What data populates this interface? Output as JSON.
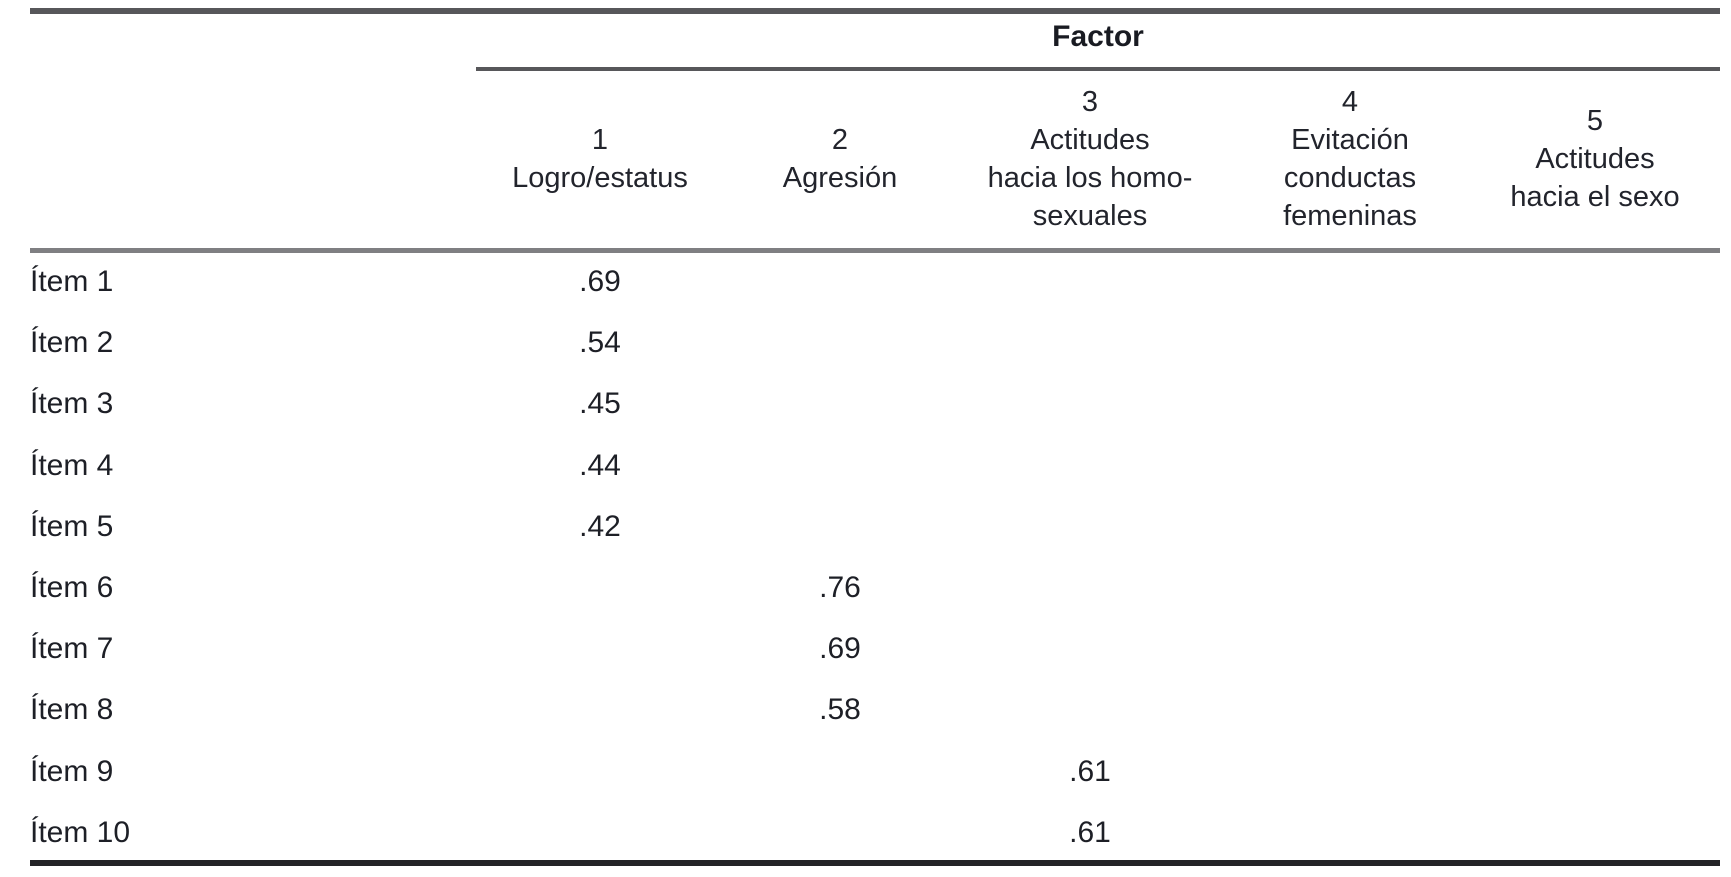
{
  "table": {
    "spanner_label": "Factor",
    "columns": [
      {
        "number": "1",
        "lines": [
          "Logro/estatus"
        ]
      },
      {
        "number": "2",
        "lines": [
          "Agresión"
        ]
      },
      {
        "number": "3",
        "lines": [
          "Actitudes",
          "hacia los homo-",
          "sexuales"
        ]
      },
      {
        "number": "4",
        "lines": [
          "Evitación",
          "conductas",
          "femeninas"
        ]
      },
      {
        "number": "5",
        "lines": [
          "Actitudes",
          "hacia el sexo"
        ]
      }
    ],
    "rows": [
      {
        "label": "Ítem 1",
        "values": [
          ".69",
          "",
          "",
          "",
          ""
        ]
      },
      {
        "label": "Ítem 2",
        "values": [
          ".54",
          "",
          "",
          "",
          ""
        ]
      },
      {
        "label": "Ítem 3",
        "values": [
          ".45",
          "",
          "",
          "",
          ""
        ]
      },
      {
        "label": "Ítem 4",
        "values": [
          ".44",
          "",
          "",
          "",
          ""
        ]
      },
      {
        "label": "Ítem 5",
        "values": [
          ".42",
          "",
          "",
          "",
          ""
        ]
      },
      {
        "label": "Ítem 6",
        "values": [
          "",
          ".76",
          "",
          "",
          ""
        ]
      },
      {
        "label": "Ítem 7",
        "values": [
          "",
          ".69",
          "",
          "",
          ""
        ]
      },
      {
        "label": "Ítem 8",
        "values": [
          "",
          ".58",
          "",
          "",
          ""
        ]
      },
      {
        "label": "Ítem 9",
        "values": [
          "",
          "",
          ".61",
          "",
          ""
        ]
      },
      {
        "label": "Ítem 10",
        "values": [
          "",
          "",
          ".61",
          "",
          ""
        ]
      }
    ],
    "colors": {
      "text": "#1d1f26",
      "rule_dark": "#57575a",
      "rule_mid": "#7f7f82",
      "rule_bottom": "#232327",
      "background": "#ffffff"
    }
  },
  "chart_data": {
    "type": "table",
    "title": "Factor",
    "column_headers": [
      "1 Logro/estatus",
      "2 Agresión",
      "3 Actitudes hacia los homosexuales",
      "4 Evitación conductas femeninas",
      "5 Actitudes hacia el sexo"
    ],
    "row_labels": [
      "Ítem 1",
      "Ítem 2",
      "Ítem 3",
      "Ítem 4",
      "Ítem 5",
      "Ítem 6",
      "Ítem 7",
      "Ítem 8",
      "Ítem 9",
      "Ítem 10"
    ],
    "loadings": {
      "Ítem 1": {
        "factor": 1,
        "value": 0.69
      },
      "Ítem 2": {
        "factor": 1,
        "value": 0.54
      },
      "Ítem 3": {
        "factor": 1,
        "value": 0.45
      },
      "Ítem 4": {
        "factor": 1,
        "value": 0.44
      },
      "Ítem 5": {
        "factor": 1,
        "value": 0.42
      },
      "Ítem 6": {
        "factor": 2,
        "value": 0.76
      },
      "Ítem 7": {
        "factor": 2,
        "value": 0.69
      },
      "Ítem 8": {
        "factor": 2,
        "value": 0.58
      },
      "Ítem 9": {
        "factor": 3,
        "value": 0.61
      },
      "Ítem 10": {
        "factor": 3,
        "value": 0.61
      }
    }
  }
}
